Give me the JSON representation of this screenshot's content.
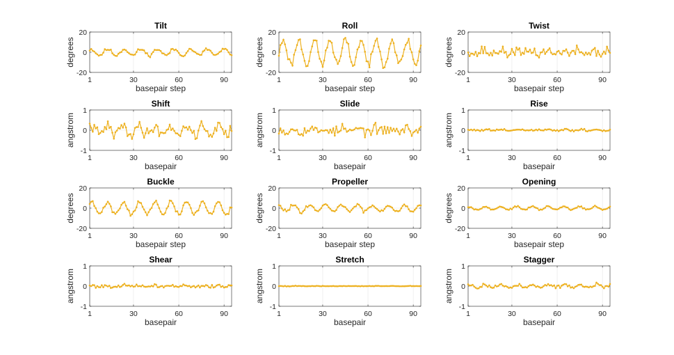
{
  "chart_data": [
    {
      "type": "line",
      "title": "Tilt",
      "ylabel": "degrees",
      "xlabel": "basepair step",
      "ylim": [
        -20,
        20
      ],
      "yticks": [
        -20,
        0,
        20
      ],
      "xticks": [
        1,
        30,
        60,
        90
      ],
      "xlim": [
        1,
        95
      ],
      "color": "#EDB120",
      "shape": "sine",
      "amp": 3,
      "period": 11,
      "phase": 0.5,
      "noise": 1.2,
      "seed": 11
    },
    {
      "type": "line",
      "title": "Roll",
      "ylabel": "degrees",
      "xlabel": "basepair step",
      "ylim": [
        -20,
        20
      ],
      "yticks": [
        -20,
        0,
        20
      ],
      "xticks": [
        1,
        30,
        60,
        90
      ],
      "xlim": [
        1,
        95
      ],
      "color": "#EDB120",
      "shape": "sine",
      "amp": 12,
      "period": 10.3,
      "phase": -0.8,
      "noise": 3,
      "seed": 23
    },
    {
      "type": "line",
      "title": "Twist",
      "ylabel": "degrees",
      "xlabel": "basepair step",
      "ylim": [
        -20,
        20
      ],
      "yticks": [
        -20,
        0,
        20
      ],
      "xticks": [
        1,
        30,
        60,
        90
      ],
      "xlim": [
        1,
        95
      ],
      "color": "#EDB120",
      "shape": "sine",
      "amp": 2,
      "period": 10.5,
      "phase": 1.2,
      "noise": 3.5,
      "seed": 37
    },
    {
      "type": "line",
      "title": "Shift",
      "ylabel": "angstrom",
      "xlabel": "basepair",
      "ylim": [
        -1,
        1
      ],
      "yticks": [
        -1,
        0,
        1
      ],
      "xticks": [
        1,
        30,
        60,
        90
      ],
      "xlim": [
        1,
        95
      ],
      "color": "#EDB120",
      "shape": "sine",
      "amp": 0.2,
      "period": 10.5,
      "phase": 0.3,
      "noise": 0.2,
      "seed": 41
    },
    {
      "type": "line",
      "title": "Slide",
      "ylabel": "angstrom",
      "xlabel": "basepair",
      "ylim": [
        -1,
        1
      ],
      "yticks": [
        -1,
        0,
        1
      ],
      "xticks": [
        1,
        30,
        60,
        90
      ],
      "xlim": [
        1,
        95
      ],
      "color": "#EDB120",
      "shape": "sine",
      "amp": 0.08,
      "period": 10.5,
      "phase": 0.9,
      "noise": 0.18,
      "seed": 53
    },
    {
      "type": "line",
      "title": "Rise",
      "ylabel": "angstrom",
      "xlabel": "basepair",
      "ylim": [
        -1,
        1
      ],
      "yticks": [
        -1,
        0,
        1
      ],
      "xticks": [
        1,
        30,
        60,
        90
      ],
      "xlim": [
        1,
        95
      ],
      "color": "#EDB120",
      "shape": "sine",
      "amp": 0.02,
      "period": 10.5,
      "phase": 0,
      "noise": 0.04,
      "seed": 61
    },
    {
      "type": "line",
      "title": "Buckle",
      "ylabel": "degrees",
      "xlabel": "basepair step",
      "ylim": [
        -20,
        20
      ],
      "yticks": [
        -20,
        0,
        20
      ],
      "xticks": [
        1,
        30,
        60,
        90
      ],
      "xlim": [
        1,
        95
      ],
      "color": "#EDB120",
      "shape": "sine",
      "amp": 6,
      "period": 10.5,
      "phase": 0.2,
      "noise": 1.5,
      "seed": 71
    },
    {
      "type": "line",
      "title": "Propeller",
      "ylabel": "degrees",
      "xlabel": "basepair step",
      "ylim": [
        -20,
        20
      ],
      "yticks": [
        -20,
        0,
        20
      ],
      "xticks": [
        1,
        30,
        60,
        90
      ],
      "xlim": [
        1,
        95
      ],
      "color": "#EDB120",
      "shape": "sine",
      "amp": 3,
      "period": 10.5,
      "phase": 1.5,
      "noise": 1.3,
      "seed": 83
    },
    {
      "type": "line",
      "title": "Opening",
      "ylabel": "degrees",
      "xlabel": "basepair step",
      "ylim": [
        -20,
        20
      ],
      "yticks": [
        -20,
        0,
        20
      ],
      "xticks": [
        1,
        30,
        60,
        90
      ],
      "xlim": [
        1,
        95
      ],
      "color": "#EDB120",
      "shape": "sine",
      "amp": 1.6,
      "period": 10.5,
      "phase": 0.7,
      "noise": 0.5,
      "seed": 97
    },
    {
      "type": "line",
      "title": "Shear",
      "ylabel": "angstrom",
      "xlabel": "basepair",
      "ylim": [
        -1,
        1
      ],
      "yticks": [
        -1,
        0,
        1
      ],
      "xticks": [
        1,
        30,
        60,
        90
      ],
      "xlim": [
        1,
        95
      ],
      "color": "#EDB120",
      "shape": "sine",
      "amp": 0.02,
      "period": 10.5,
      "phase": 0,
      "noise": 0.06,
      "seed": 101
    },
    {
      "type": "line",
      "title": "Stretch",
      "ylabel": "angstrom",
      "xlabel": "basepair",
      "ylim": [
        -1,
        1
      ],
      "yticks": [
        -1,
        0,
        1
      ],
      "xticks": [
        1,
        30,
        60,
        90
      ],
      "xlim": [
        1,
        95
      ],
      "color": "#EDB120",
      "shape": "sine",
      "amp": 0.005,
      "period": 10.5,
      "phase": 0,
      "noise": 0.01,
      "seed": 113
    },
    {
      "type": "line",
      "title": "Stagger",
      "ylabel": "angstrom",
      "xlabel": "basepair",
      "ylim": [
        -1,
        1
      ],
      "yticks": [
        -1,
        0,
        1
      ],
      "xticks": [
        1,
        30,
        60,
        90
      ],
      "xlim": [
        1,
        95
      ],
      "color": "#EDB120",
      "shape": "sine",
      "amp": 0.07,
      "period": 10.5,
      "phase": 0.4,
      "noise": 0.06,
      "seed": 127
    }
  ]
}
